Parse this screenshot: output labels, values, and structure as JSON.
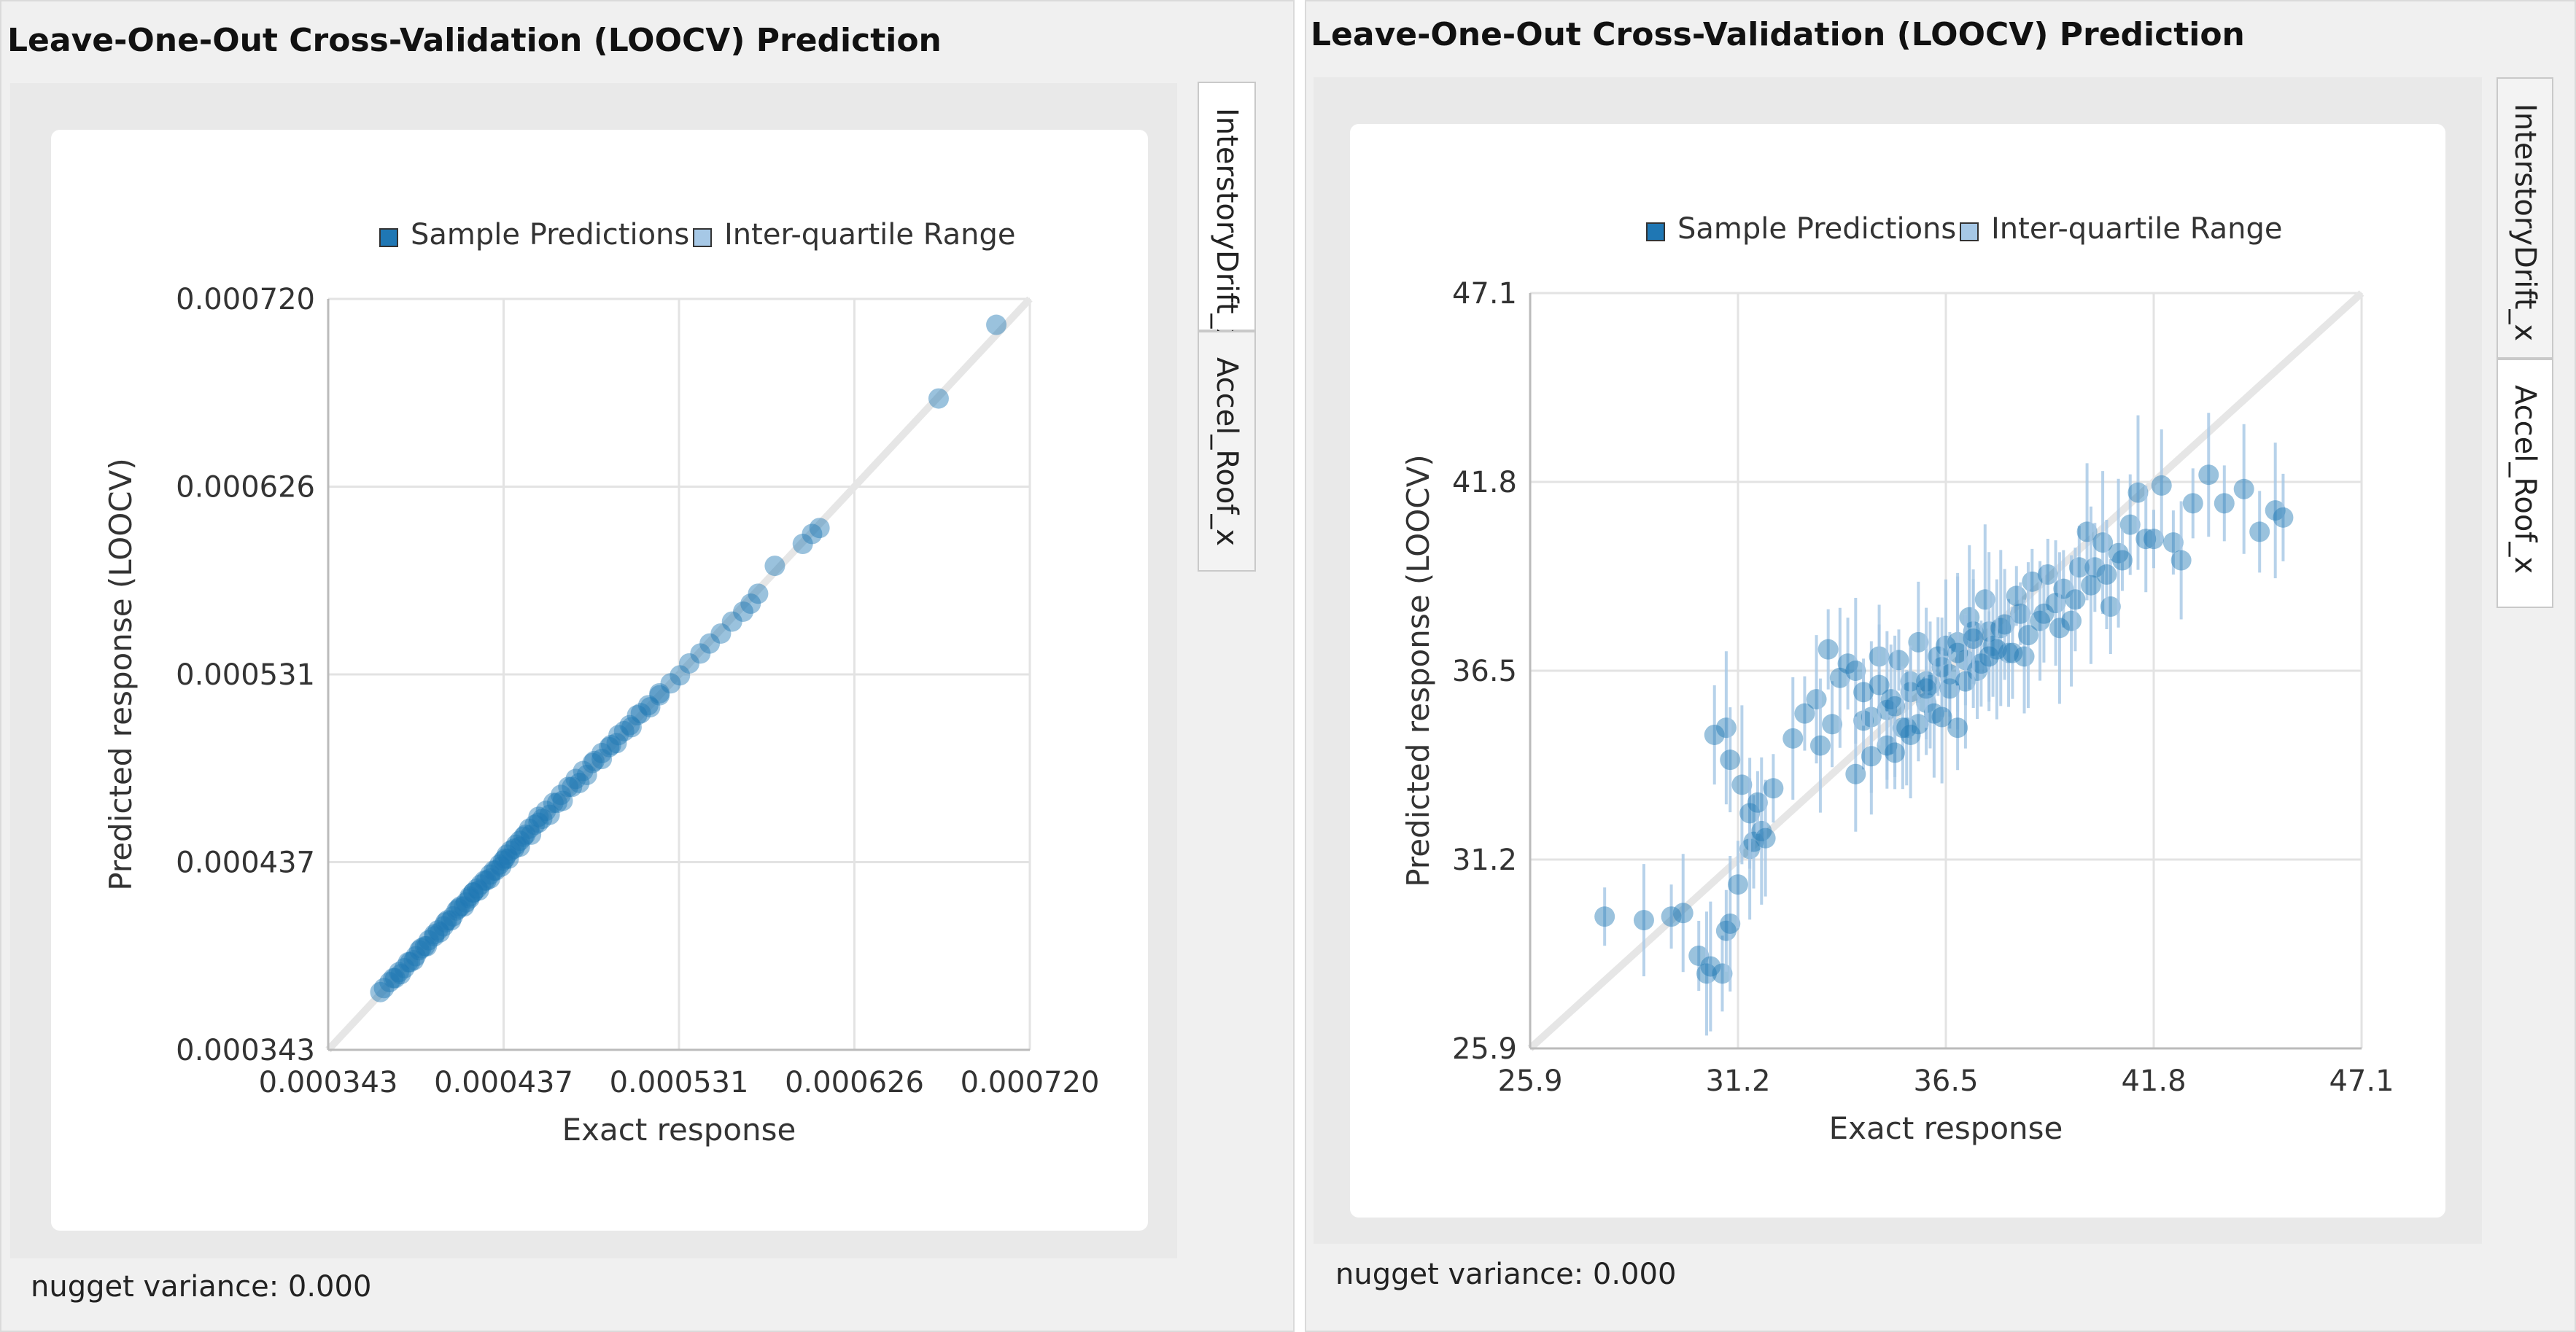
{
  "panels": [
    {
      "title": "Leave-One-Out Cross-Validation (LOOCV) Prediction",
      "tabs": [
        "InterstoryDrift_x",
        "Accel_Roof_x"
      ],
      "active_tab": 0,
      "nugget_text": "nugget variance: 0.000"
    },
    {
      "title": "Leave-One-Out Cross-Validation (LOOCV) Prediction",
      "tabs": [
        "InterstoryDrift_x",
        "Accel_Roof_x"
      ],
      "active_tab": 1,
      "nugget_text": "nugget variance: 0.000"
    }
  ],
  "chart_data": [
    {
      "type": "scatter",
      "title": "",
      "xlabel": "Exact response",
      "ylabel": "Predicted response (LOOCV)",
      "xlim": [
        0.000343,
        0.00072
      ],
      "ylim": [
        0.000343,
        0.00072
      ],
      "xticks": [
        "0.000343",
        "0.000437",
        "0.000531",
        "0.000626",
        "0.000720"
      ],
      "yticks": [
        "0.000343",
        "0.000437",
        "0.000531",
        "0.000626",
        "0.000720"
      ],
      "grid": true,
      "legend": [
        "Sample Predictions",
        "Inter-quartile Range"
      ],
      "legend_position": "top",
      "colors": {
        "points": "#1f77b4",
        "iqr": "#a6c8e6",
        "diagonal": "#e6e6e6"
      },
      "series": [
        {
          "name": "Sample Predictions",
          "x": [
            0.000371,
            0.000373,
            0.000376,
            0.000379,
            0.000381,
            0.000384,
            0.000387,
            0.00039,
            0.000392,
            0.000395,
            0.000397,
            0.0004,
            0.000402,
            0.000405,
            0.000407,
            0.00041,
            0.000412,
            0.000414,
            0.000417,
            0.000419,
            0.000421,
            0.000423,
            0.000425,
            0.000428,
            0.00043,
            0.000433,
            0.000435,
            0.000437,
            0.000439,
            0.000441,
            0.000444,
            0.000446,
            0.000449,
            0.000451,
            0.000454,
            0.000456,
            0.00046,
            0.000464,
            0.000468,
            0.000472,
            0.000476,
            0.00048,
            0.000485,
            0.00049,
            0.000495,
            0.000499,
            0.000505,
            0.000509,
            0.000515,
            0.000521,
            0.000527,
            0.000532,
            0.000537,
            0.000543,
            0.000548,
            0.000554,
            0.00056,
            0.000566,
            0.00057,
            0.000574,
            0.000583,
            0.000598,
            0.000603,
            0.000607,
            0.000671,
            0.000702,
            0.000378,
            0.000382,
            0.000386,
            0.000389,
            0.000393,
            0.000396,
            0.0004,
            0.000403,
            0.000406,
            0.000409,
            0.000413,
            0.000416,
            0.000419,
            0.000421,
            0.000424,
            0.000427,
            0.00043,
            0.000432,
            0.000436,
            0.000438,
            0.00044,
            0.000443,
            0.000446,
            0.000448,
            0.000452,
            0.000456,
            0.000458,
            0.000462,
            0.000466,
            0.000469,
            0.000474,
            0.000478,
            0.000482,
            0.000486,
            0.00049,
            0.000494,
            0.000498,
            0.000502,
            0.000506,
            0.000511,
            0.000516,
            0.000521
          ],
          "y": [
            0.000372,
            0.000374,
            0.000377,
            0.000379,
            0.000382,
            0.000384,
            0.000387,
            0.00039,
            0.000393,
            0.000395,
            0.000398,
            0.0004,
            0.000403,
            0.000405,
            0.000408,
            0.00041,
            0.000413,
            0.000415,
            0.000417,
            0.000419,
            0.000422,
            0.000424,
            0.000426,
            0.000428,
            0.000431,
            0.000433,
            0.000436,
            0.000438,
            0.000441,
            0.000443,
            0.000446,
            0.000448,
            0.000451,
            0.000454,
            0.000456,
            0.00046,
            0.000463,
            0.000467,
            0.000471,
            0.000475,
            0.000479,
            0.000483,
            0.000487,
            0.000492,
            0.000496,
            0.000501,
            0.000506,
            0.000511,
            0.000516,
            0.000521,
            0.000527,
            0.000531,
            0.000537,
            0.000542,
            0.000547,
            0.000552,
            0.000558,
            0.000563,
            0.000567,
            0.000572,
            0.000586,
            0.000597,
            0.000602,
            0.000605,
            0.00067,
            0.000707,
            0.000379,
            0.000381,
            0.000387,
            0.000388,
            0.000394,
            0.000395,
            0.000401,
            0.000402,
            0.000407,
            0.000408,
            0.000414,
            0.000415,
            0.00042,
            0.000422,
            0.000423,
            0.000428,
            0.000429,
            0.000433,
            0.000435,
            0.000439,
            0.000439,
            0.000444,
            0.000445,
            0.00045,
            0.000451,
            0.000457,
            0.000459,
            0.000461,
            0.000467,
            0.000468,
            0.000475,
            0.000477,
            0.000481,
            0.000488,
            0.000489,
            0.000495,
            0.000497,
            0.000503,
            0.000505,
            0.000512,
            0.000515,
            0.000522
          ]
        }
      ]
    },
    {
      "type": "scatter",
      "title": "",
      "xlabel": "Exact response",
      "ylabel": "Predicted response (LOOCV)",
      "xlim": [
        25.9,
        47.1
      ],
      "ylim": [
        25.9,
        47.1
      ],
      "xticks": [
        "25.9",
        "31.2",
        "36.5",
        "41.8",
        "47.1"
      ],
      "yticks": [
        "25.9",
        "31.2",
        "36.5",
        "41.8",
        "47.1"
      ],
      "grid": true,
      "legend": [
        "Sample Predictions",
        "Inter-quartile Range"
      ],
      "legend_position": "top",
      "colors": {
        "points": "#1f77b4",
        "iqr": "#a6c8e6",
        "diagonal": "#e6e6e6"
      },
      "series": [
        {
          "name": "Sample Predictions",
          "x": [
            27.8,
            28.8,
            29.5,
            29.8,
            30.2,
            30.4,
            30.8,
            30.5,
            30.9,
            31.0,
            31.2,
            31.5,
            31.6,
            31.8,
            30.6,
            30.9,
            31.0,
            31.3,
            31.5,
            31.7,
            31.9,
            32.1,
            32.6,
            32.9,
            33.2,
            33.5,
            33.3,
            33.6,
            33.8,
            34.0,
            34.2,
            34.4,
            34.6,
            34.8,
            35.0,
            35.1,
            35.3,
            35.5,
            35.6,
            35.8,
            36.0,
            36.1,
            36.3,
            36.5,
            36.6,
            36.8,
            37.0,
            37.1,
            37.3,
            37.5,
            37.7,
            37.9,
            38.1,
            38.3,
            38.5,
            38.7,
            38.9,
            39.1,
            39.3,
            39.5,
            39.7,
            39.9,
            40.1,
            40.3,
            40.5,
            40.7,
            40.9,
            41.2,
            41.4,
            41.6,
            41.8,
            42.0,
            42.3,
            42.5,
            42.8,
            43.2,
            43.6,
            44.1,
            44.5,
            44.9,
            45.1,
            35.2,
            35.6,
            36.0,
            36.4,
            36.8,
            37.2,
            37.6,
            38.0,
            38.4,
            34.6,
            35.0,
            35.4,
            35.8,
            36.2,
            36.6,
            37.0,
            37.4,
            37.8,
            38.2,
            38.6,
            39.0,
            39.4,
            39.8,
            40.2,
            40.6,
            41.0,
            34.2,
            34.4,
            34.8,
            35.2,
            35.6,
            36.0,
            36.4,
            36.8,
            37.2,
            37.6
          ],
          "y": [
            29.6,
            29.5,
            29.6,
            29.7,
            28.5,
            28.0,
            28.0,
            28.2,
            29.2,
            29.4,
            30.5,
            31.5,
            31.7,
            32.0,
            34.7,
            34.9,
            34.0,
            33.3,
            32.5,
            32.8,
            31.8,
            33.2,
            34.6,
            35.3,
            35.7,
            37.1,
            34.4,
            35.0,
            36.3,
            36.7,
            36.5,
            35.1,
            35.2,
            36.9,
            35.4,
            35.7,
            36.8,
            34.9,
            36.2,
            37.3,
            35.6,
            36.1,
            36.9,
            37.2,
            36.4,
            37.3,
            36.8,
            38.0,
            36.5,
            38.5,
            37.2,
            37.7,
            37.0,
            38.6,
            36.9,
            39.0,
            37.9,
            39.2,
            38.4,
            38.8,
            37.9,
            39.4,
            40.4,
            39.4,
            40.1,
            38.3,
            39.8,
            40.6,
            41.5,
            40.2,
            40.2,
            41.7,
            40.1,
            39.6,
            41.2,
            42.0,
            41.2,
            41.6,
            40.4,
            41.0,
            40.8,
            35.5,
            35.9,
            36.2,
            36.6,
            37.0,
            37.6,
            37.6,
            37.8,
            38.1,
            34.1,
            34.4,
            34.9,
            35.0,
            35.3,
            36.0,
            36.2,
            36.7,
            37.1,
            37.0,
            37.5,
            38.1,
            37.7,
            38.5,
            38.9,
            39.2,
            39.6,
            33.6,
            35.9,
            36.1,
            34.2,
            34.7,
            36.0,
            35.2,
            34.9,
            37.4,
            36.9
          ]
        }
      ]
    }
  ]
}
